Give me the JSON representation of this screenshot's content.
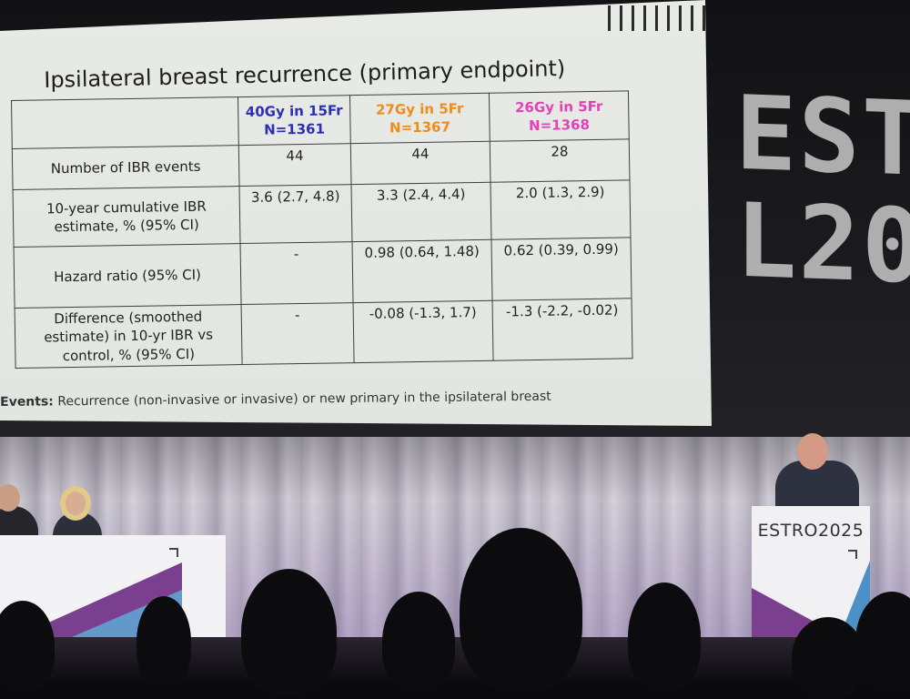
{
  "slide": {
    "title": "Ipsilateral breast recurrence (primary endpoint)",
    "table": {
      "columns": [
        {
          "line1": "40Gy in 15Fr",
          "line2": "N=1361",
          "color": "#2b2fb5"
        },
        {
          "line1": "27Gy in 5Fr",
          "line2": "N=1367",
          "color": "#f08c1b"
        },
        {
          "line1": "26Gy in 5Fr",
          "line2": "N=1368",
          "color": "#e640b8"
        }
      ],
      "rows": [
        {
          "label": "Number of IBR events",
          "values": [
            "44",
            "44",
            "28"
          ]
        },
        {
          "label": "10-year cumulative IBR estimate, % (95% CI)",
          "values": [
            "3.6 (2.7, 4.8)",
            "3.3 (2.4, 4.4)",
            "2.0 (1.3, 2.9)"
          ]
        },
        {
          "label": "Hazard ratio (95% CI)",
          "values": [
            "-",
            "0.98 (0.64, 1.48)",
            "0.62 (0.39, 0.99)"
          ]
        },
        {
          "label": "Difference (smoothed estimate) in 10-yr IBR vs control, % (95% CI)",
          "values": [
            "-",
            "-0.08 (-1.3, 1.7)",
            "-1.3 (-2.2, -0.02)"
          ]
        }
      ]
    },
    "footnote_label": "Events:",
    "footnote_text": "Recurrence (non-invasive or invasive) or new primary in the ipsilateral breast"
  },
  "backdrop": {
    "line1": "ESTR",
    "line2": "L20"
  },
  "lectern": {
    "logo": "ESTRO2025"
  }
}
